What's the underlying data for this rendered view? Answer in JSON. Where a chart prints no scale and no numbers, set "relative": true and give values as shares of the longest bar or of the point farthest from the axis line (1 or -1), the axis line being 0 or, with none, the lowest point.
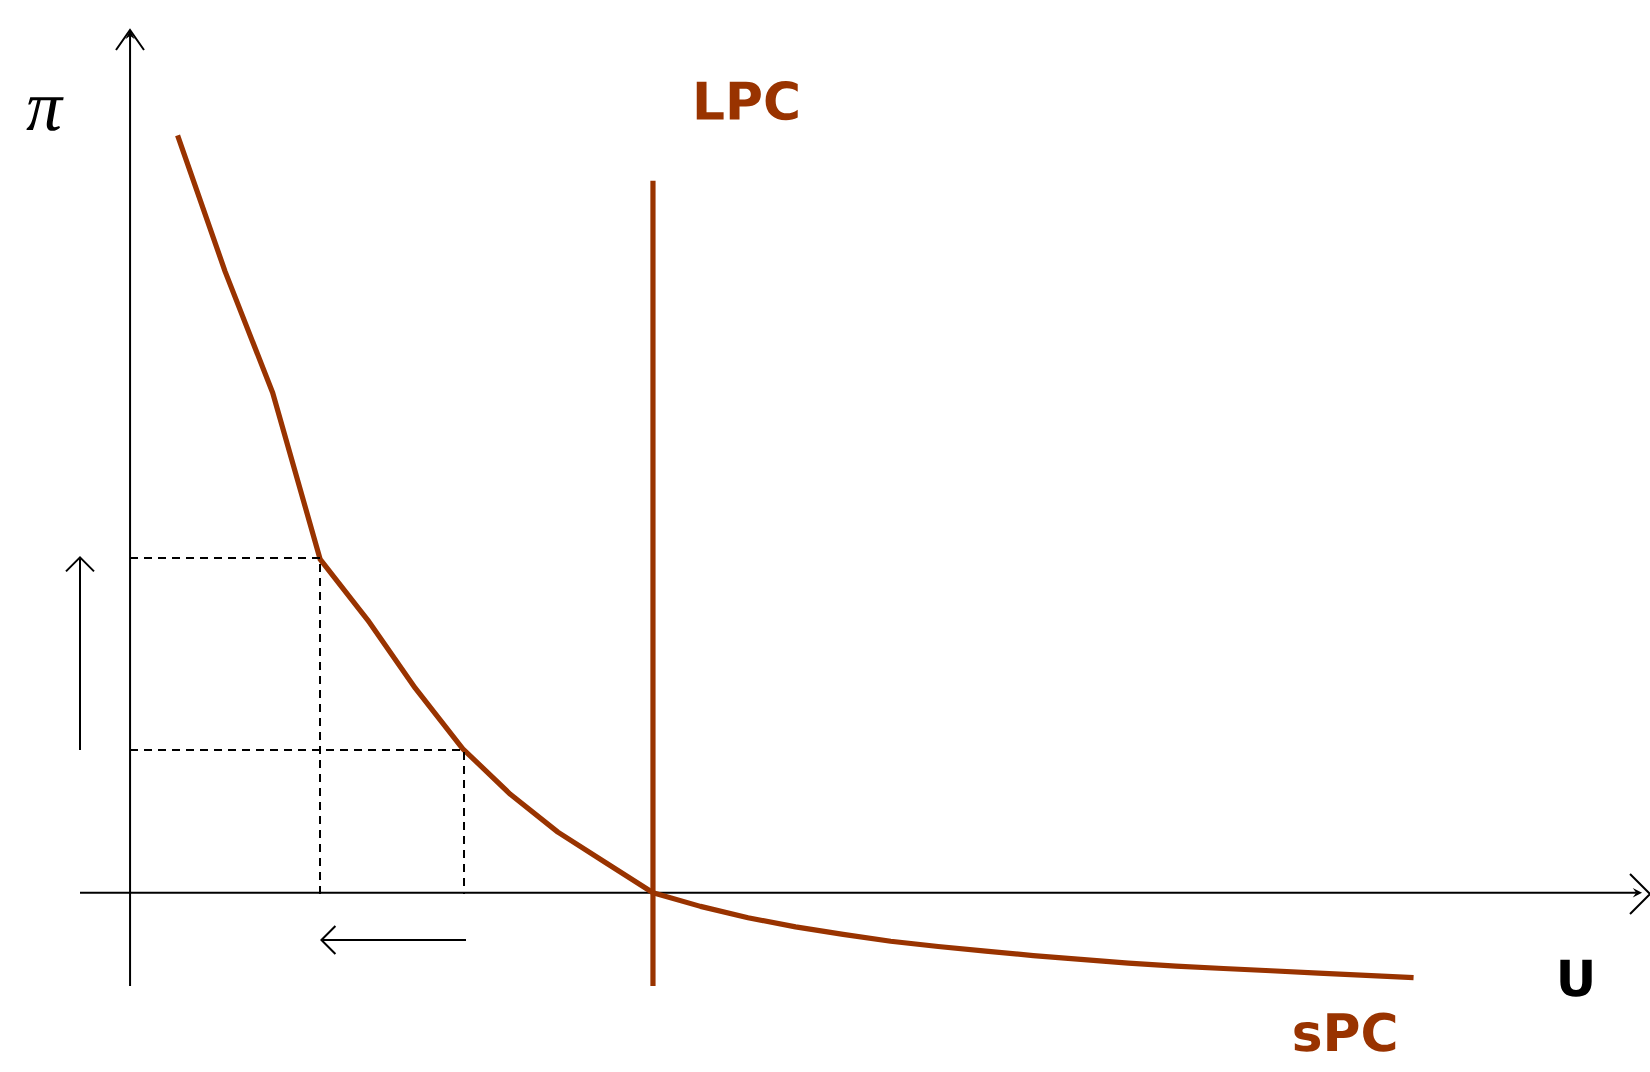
{
  "chart_data": {
    "type": "line",
    "relative": true,
    "xlabel": "U",
    "ylabel": "π",
    "legend": false,
    "marker": "none",
    "categories": [
      null,
      null,
      null,
      null,
      null,
      null,
      null,
      null,
      null,
      null,
      null,
      null,
      null,
      null,
      null,
      null,
      null,
      null,
      null,
      null,
      null,
      null,
      null,
      null,
      null,
      null,
      null,
      null
    ],
    "series": [
      {
        "name": "sPC",
        "color": "#993300",
        "line_style": "solid",
        "values": [
          null,
          1.0,
          0.82,
          0.66,
          0.44,
          0.36,
          0.27,
          0.19,
          0.13,
          0.08,
          0.04,
          0,
          -0.018,
          -0.033,
          -0.045,
          -0.055,
          -0.064,
          -0.071,
          -0.077,
          -0.083,
          -0.088,
          -0.093,
          -0.097,
          -0.1,
          -0.103,
          -0.106,
          -0.109,
          -0.112
        ]
      }
    ],
    "annotations": [
      "LPC"
    ]
  }
}
